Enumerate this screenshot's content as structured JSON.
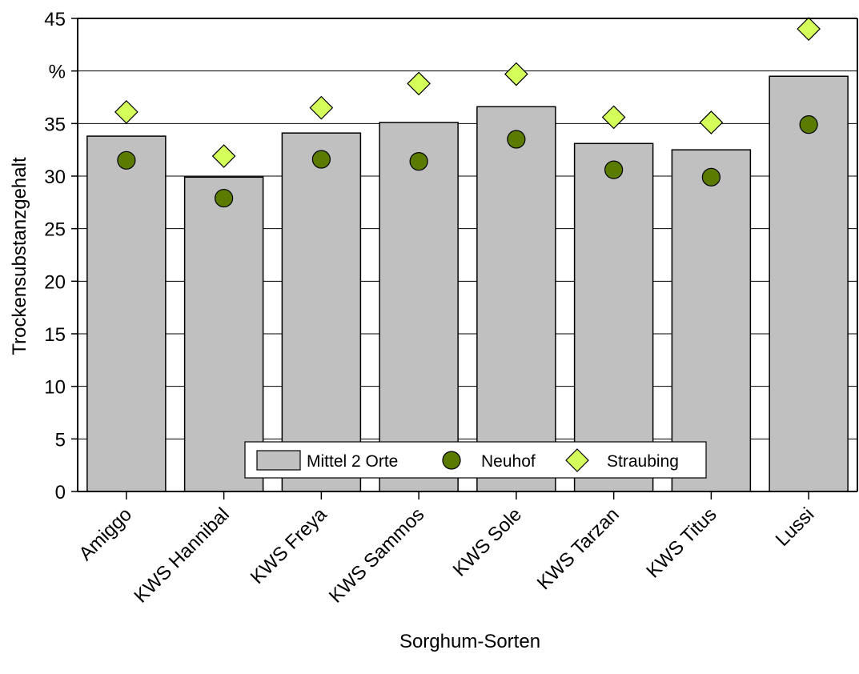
{
  "chart_data": {
    "type": "bar",
    "categories": [
      "Amiggo",
      "KWS Hannibal",
      "KWS Freya",
      "KWS Sammos",
      "KWS Sole",
      "KWS Tarzan",
      "KWS Titus",
      "Lussi"
    ],
    "series": [
      {
        "name": "Mittel 2 Orte",
        "type": "bar",
        "values": [
          33.8,
          29.9,
          34.1,
          35.1,
          36.6,
          33.1,
          32.5,
          39.5
        ],
        "color": "#c0c0c0"
      },
      {
        "name": "Neuhof",
        "type": "scatter",
        "marker": "circle",
        "values": [
          31.5,
          27.9,
          31.6,
          31.4,
          33.5,
          30.6,
          29.9,
          34.9
        ],
        "color": "#5a7a00"
      },
      {
        "name": "Straubing",
        "type": "scatter",
        "marker": "diamond",
        "values": [
          36.1,
          31.9,
          36.5,
          38.8,
          39.7,
          35.6,
          35.1,
          44.0
        ],
        "color": "#d4ff5a"
      }
    ],
    "xlabel": "Sorghum-Sorten",
    "ylabel": "Trockensubstanzgehalt",
    "y_unit_label": "%",
    "ylim": [
      0,
      45
    ],
    "yticks": [
      "0",
      "5",
      "10",
      "15",
      "20",
      "25",
      "30",
      "35",
      "%",
      "45"
    ],
    "grid": true,
    "legend_position": "bottom-center"
  }
}
